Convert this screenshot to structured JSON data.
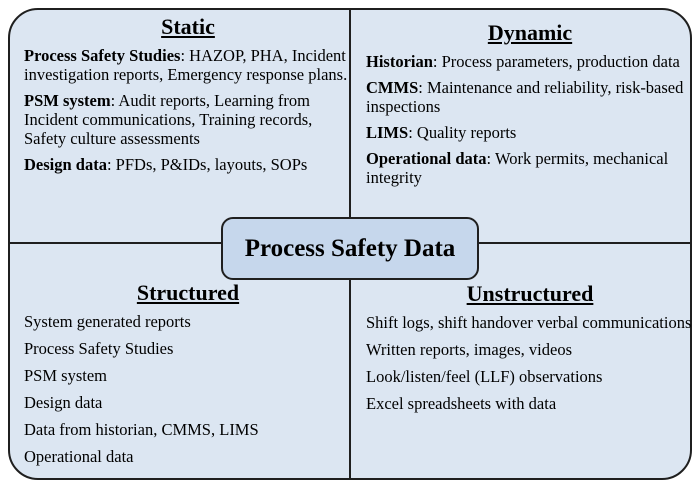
{
  "title": "Process Safety Data",
  "quadrants": [
    {
      "heading": "Static",
      "items": [
        {
          "term": "Process Safety Studies",
          "text": ": HAZOP, PHA, Incident investigation reports, Emergency response plans."
        },
        {
          "term": "PSM system",
          "text": ": Audit reports, Learning from Incident communications, Training records, Safety culture assessments"
        },
        {
          "term": "Design data",
          "text": ": PFDs, P&IDs, layouts, SOPs"
        }
      ]
    },
    {
      "heading": "Dynamic",
      "items": [
        {
          "term": "Historian",
          "text": ": Process parameters, production data"
        },
        {
          "term": "CMMS",
          "text": ": Maintenance and reliability, risk-based inspections"
        },
        {
          "term": "LIMS",
          "text": ": Quality reports"
        },
        {
          "term": "Operational data",
          "text": ": Work permits, mechanical integrity"
        }
      ]
    },
    {
      "heading": "Structured",
      "items": [
        {
          "text": "System generated reports"
        },
        {
          "text": "Process Safety Studies"
        },
        {
          "text": "PSM system"
        },
        {
          "text": "Design data"
        },
        {
          "text": "Data from historian, CMMS, LIMS"
        },
        {
          "text": "Operational data"
        }
      ]
    },
    {
      "heading": "Unstructured",
      "items": [
        {
          "text": "Shift logs, shift handover verbal communications"
        },
        {
          "text": "Written reports, images, videos"
        },
        {
          "text": "Look/listen/feel (LLF) observations"
        },
        {
          "text": "Excel spreadsheets with data"
        }
      ]
    }
  ]
}
